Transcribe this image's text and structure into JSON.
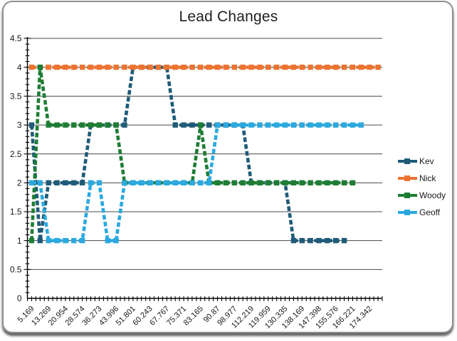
{
  "chart_data": {
    "type": "line",
    "title": "Lead Changes",
    "line_style": "dashed",
    "marker": "square",
    "grid": true,
    "legend_position": "right",
    "n_categories": 42,
    "ylim": [
      0,
      4.5
    ],
    "y_tick_step": 0.5,
    "y_minor_step": 0.1,
    "y_tick_labels": [
      "0",
      "0.5",
      "1",
      "1.5",
      "2",
      "2.5",
      "3",
      "3.5",
      "4",
      "4.5"
    ],
    "x_label_interval": 2,
    "x_tick_labels": [
      "5.169",
      "13.269",
      "20.954",
      "28.574",
      "36.273",
      "43.996",
      "51.801",
      "60.243",
      "67.767",
      "75.371",
      "83.165",
      "90.87",
      "98.977",
      "112.219",
      "119.959",
      "130.335",
      "138.169",
      "147.398",
      "155.576",
      "166.221",
      "174.342"
    ],
    "axis_color": "#000000",
    "gridline_color": "#4a4a4a",
    "label_color": "#1a1a1a",
    "series": [
      {
        "name": "Kev",
        "color": "#1F5B78",
        "values": [
          3,
          1,
          2,
          2,
          2,
          2,
          2,
          3,
          3,
          3,
          3,
          3,
          4,
          4,
          4,
          4,
          4,
          3,
          3,
          3,
          3,
          3,
          3,
          3,
          3,
          3,
          2,
          2,
          2,
          2,
          2,
          1,
          1,
          1,
          1,
          1,
          1,
          1
        ]
      },
      {
        "name": "Nick",
        "color": "#ED7331",
        "values": [
          4,
          4,
          4,
          4,
          4,
          4,
          4,
          4,
          4,
          4,
          4,
          4,
          4,
          4,
          4,
          4,
          4,
          4,
          4,
          4,
          4,
          4,
          4,
          4,
          4,
          4,
          4,
          4,
          4,
          4,
          4,
          4,
          4,
          4,
          4,
          4,
          4,
          4,
          4,
          4,
          4,
          4
        ]
      },
      {
        "name": "Woody",
        "color": "#1E7D34",
        "values": [
          1,
          4,
          3,
          3,
          3,
          3,
          3,
          3,
          3,
          3,
          3,
          2,
          2,
          2,
          2,
          2,
          2,
          2,
          2,
          2,
          3,
          2,
          2,
          2,
          2,
          2,
          2,
          2,
          2,
          2,
          2,
          2,
          2,
          2,
          2,
          2,
          2,
          2,
          2
        ]
      },
      {
        "name": "Geoff",
        "color": "#2BA9DF",
        "values": [
          2,
          2,
          1,
          1,
          1,
          1,
          1,
          2,
          2,
          1,
          1,
          2,
          2,
          2,
          2,
          2,
          2,
          2,
          2,
          2,
          2,
          2,
          3,
          3,
          3,
          3,
          3,
          3,
          3,
          3,
          3,
          3,
          3,
          3,
          3,
          3,
          3,
          3,
          3,
          3
        ]
      }
    ]
  }
}
